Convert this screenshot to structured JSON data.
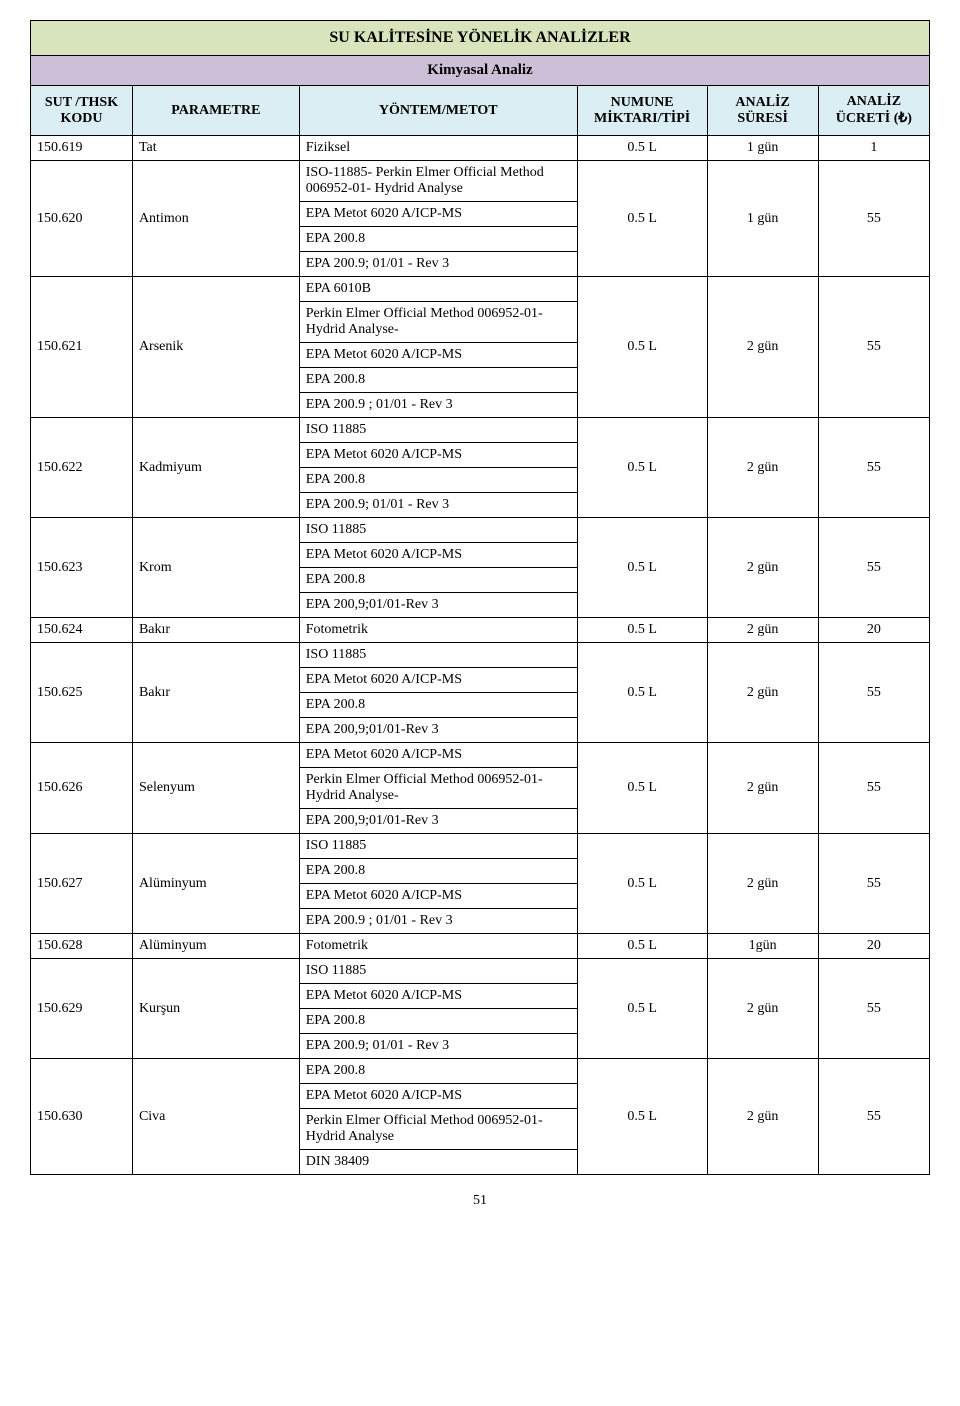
{
  "colors": {
    "title_bg": "#d8e4bc",
    "subtitle_bg": "#ccc0d9",
    "header_bg": "#daeef3",
    "border": "#000000",
    "page_bg": "#ffffff"
  },
  "title": "SU KALİTESİNE YÖNELİK ANALİZLER",
  "subtitle": "Kimyasal Analiz",
  "headers": {
    "kod": "SUT /THSK KODU",
    "param": "PARAMETRE",
    "method": "YÖNTEM/METOT",
    "numune": "NUMUNE MİKTARI/TİPİ",
    "sure": "ANALİZ SÜRESİ",
    "ucret": "ANALİZ ÜCRETİ (₺)"
  },
  "rows": [
    {
      "kod": "150.619",
      "param": "Tat",
      "methods": [
        "Fiziksel"
      ],
      "numune": "0.5 L",
      "sure": "1 gün",
      "ucret": "1"
    },
    {
      "kod": "150.620",
      "param": "Antimon",
      "methods": [
        "ISO-11885- Perkin Elmer Official Method 006952-01- Hydrid Analyse",
        "EPA Metot 6020 A/ICP-MS",
        "EPA 200.8",
        "EPA 200.9; 01/01 - Rev 3"
      ],
      "numune": "0.5 L",
      "sure": "1 gün",
      "ucret": "55"
    },
    {
      "kod": "150.621",
      "param": "Arsenik",
      "methods": [
        "EPA 6010B",
        "Perkin Elmer Official Method 006952-01-Hydrid Analyse-",
        "EPA Metot 6020 A/ICP-MS",
        "EPA 200.8",
        "EPA 200.9 ; 01/01 - Rev 3"
      ],
      "numune": "0.5 L",
      "sure": "2 gün",
      "ucret": "55"
    },
    {
      "kod": "150.622",
      "param": "Kadmiyum",
      "methods": [
        "ISO 11885",
        "EPA Metot 6020 A/ICP-MS",
        "EPA 200.8",
        "EPA 200.9; 01/01 - Rev 3"
      ],
      "numune": "0.5 L",
      "sure": "2 gün",
      "ucret": "55"
    },
    {
      "kod": "150.623",
      "param": "Krom",
      "methods": [
        "ISO 11885",
        "EPA Metot 6020 A/ICP-MS",
        "EPA 200.8",
        "EPA 200,9;01/01-Rev 3"
      ],
      "numune": "0.5 L",
      "sure": "2 gün",
      "ucret": "55"
    },
    {
      "kod": "150.624",
      "param": "Bakır",
      "methods": [
        "Fotometrik"
      ],
      "numune": "0.5 L",
      "sure": "2 gün",
      "ucret": "20"
    },
    {
      "kod": "150.625",
      "param": "Bakır",
      "methods": [
        "ISO 11885",
        "EPA Metot 6020 A/ICP-MS",
        "EPA 200.8",
        "EPA 200,9;01/01-Rev 3"
      ],
      "numune": "0.5 L",
      "sure": "2 gün",
      "ucret": "55"
    },
    {
      "kod": "150.626",
      "param": "Selenyum",
      "methods": [
        "EPA Metot 6020 A/ICP-MS",
        "Perkin Elmer Official Method 006952-01-Hydrid Analyse-",
        "EPA 200,9;01/01-Rev 3"
      ],
      "numune": "0.5 L",
      "sure": "2 gün",
      "ucret": "55"
    },
    {
      "kod": "150.627",
      "param": "Alüminyum",
      "methods": [
        "ISO 11885",
        "EPA 200.8",
        "EPA Metot 6020 A/ICP-MS",
        "EPA 200.9 ; 01/01 - Rev 3"
      ],
      "numune": "0.5 L",
      "sure": "2 gün",
      "ucret": "55"
    },
    {
      "kod": "150.628",
      "param": "Alüminyum",
      "methods": [
        "Fotometrik"
      ],
      "numune": "0.5 L",
      "sure": "1gün",
      "ucret": "20"
    },
    {
      "kod": "150.629",
      "param": "Kurşun",
      "methods": [
        "ISO 11885",
        "EPA Metot 6020 A/ICP-MS",
        "EPA 200.8",
        "EPA 200.9; 01/01 - Rev 3"
      ],
      "numune": "0.5 L",
      "sure": "2 gün",
      "ucret": "55"
    },
    {
      "kod": "150.630",
      "param": "Civa",
      "methods": [
        "EPA 200.8",
        "EPA Metot 6020 A/ICP-MS",
        "Perkin Elmer Official Method 006952-01-Hydrid Analyse",
        "DIN 38409"
      ],
      "numune": "0.5 L",
      "sure": "2 gün",
      "ucret": "55"
    }
  ],
  "page_number": "51"
}
